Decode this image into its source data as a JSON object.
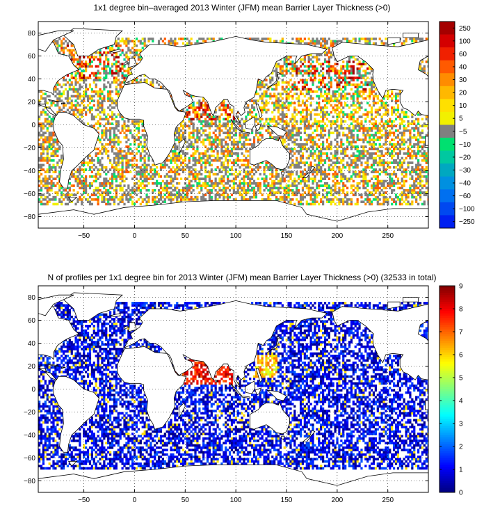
{
  "chart_data": [
    {
      "type": "heatmap",
      "title": "1x1 degree bin–averaged 2013 Winter (JFM) mean Barrier Layer Thickness (>0)",
      "xlabel": "",
      "ylabel": "",
      "xlim": [
        -95,
        290
      ],
      "ylim": [
        -90,
        90
      ],
      "x_ticks": [
        -50,
        0,
        50,
        100,
        150,
        200,
        250
      ],
      "y_ticks": [
        80,
        60,
        40,
        20,
        0,
        -20,
        -40,
        -60,
        -80
      ],
      "grid": true,
      "colorbar": {
        "type": "categorical",
        "ticks": [
          "250",
          "100",
          "60",
          "40",
          "30",
          "20",
          "10",
          "5",
          "−5",
          "−10",
          "−20",
          "−30",
          "−40",
          "−60",
          "−100",
          "−250"
        ],
        "colors": [
          "#a50000",
          "#d40000",
          "#f02000",
          "#ff5a00",
          "#ff8c00",
          "#ffb800",
          "#ffe000",
          "#f2f000",
          "#808080",
          "#00e070",
          "#00c8a0",
          "#00a8c0",
          "#0090e0",
          "#0070f0",
          "#0048f0",
          "#0020f0"
        ]
      },
      "regions": [
        {
          "lon": [
            -75,
            -10
          ],
          "lat": [
            40,
            70
          ],
          "level": "high"
        },
        {
          "lon": [
            150,
            230
          ],
          "lat": [
            30,
            55
          ],
          "level": "high"
        },
        {
          "lon": [
            40,
            100
          ],
          "lat": [
            5,
            25
          ],
          "level": "high"
        },
        {
          "lon": [
            120,
            280
          ],
          "lat": [
            0,
            30
          ],
          "level": "mid"
        },
        {
          "lon": [
            -95,
            290
          ],
          "lat": [
            -60,
            -10
          ],
          "level": "low"
        }
      ]
    },
    {
      "type": "heatmap",
      "title": "N of profiles per 1x1 degree bin for 2013 Winter (JFM) mean Barrier Layer Thickness (>0) (32533 in total)",
      "xlabel": "",
      "ylabel": "",
      "xlim": [
        -95,
        290
      ],
      "ylim": [
        -90,
        90
      ],
      "x_ticks": [
        -50,
        0,
        50,
        100,
        150,
        200,
        250
      ],
      "y_ticks": [
        80,
        60,
        40,
        20,
        0,
        -20,
        -40,
        -60,
        -80
      ],
      "grid": true,
      "colorbar": {
        "type": "continuous",
        "range": [
          0,
          9
        ],
        "ticks": [
          "9",
          "8",
          "7",
          "6",
          "5",
          "4",
          "3",
          "2",
          "1",
          "0"
        ],
        "colormap": "jet"
      },
      "total_profiles": 32533,
      "regions": [
        {
          "lon": [
            -95,
            290
          ],
          "lat": [
            -65,
            70
          ],
          "typical_count": 1
        },
        {
          "lon": [
            40,
            100
          ],
          "lat": [
            5,
            25
          ],
          "typical_count": 8
        },
        {
          "lon": [
            120,
            140
          ],
          "lat": [
            10,
            30
          ],
          "typical_count": 6
        }
      ]
    }
  ]
}
